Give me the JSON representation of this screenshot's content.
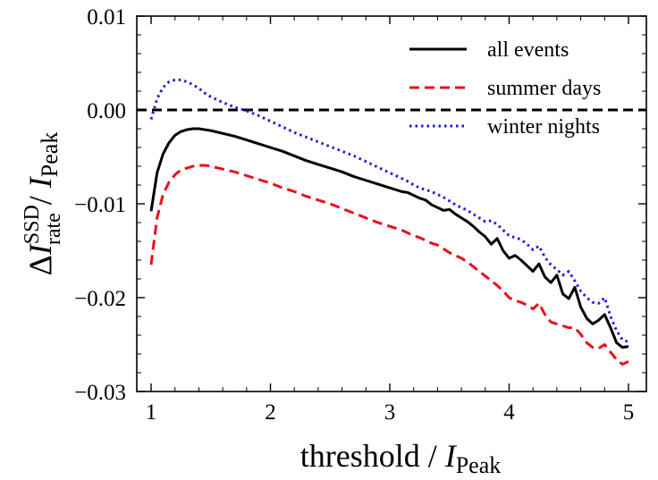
{
  "chart_data": {
    "type": "line",
    "xlabel": {
      "main": "threshold / ",
      "italic": "I",
      "sub": "Peak"
    },
    "ylabel": {
      "delta": "Δ",
      "italic": "I",
      "sup": "SSD",
      "sub": "rate",
      "mid": " / ",
      "italic2": "I",
      "sub2": "Peak"
    },
    "xlim": [
      0.88,
      5.15
    ],
    "ylim": [
      -0.03,
      0.01
    ],
    "xticks": [
      1,
      2,
      3,
      4,
      5
    ],
    "xtick_labels": [
      "1",
      "2",
      "3",
      "4",
      "5"
    ],
    "yticks": [
      0.01,
      0.0,
      -0.01,
      -0.02,
      -0.03
    ],
    "ytick_labels": [
      "0.01",
      "0.00",
      "−0.01",
      "−0.02",
      "−0.03"
    ],
    "grid": false,
    "legend_position": "top-right",
    "reference_line": {
      "y": 0.0,
      "style": "dashed",
      "color": "#000000"
    },
    "series": [
      {
        "name": "all events",
        "color": "#000000",
        "dash": "solid",
        "x": [
          1.0,
          1.05,
          1.1,
          1.15,
          1.2,
          1.25,
          1.3,
          1.35,
          1.4,
          1.45,
          1.5,
          1.6,
          1.7,
          1.8,
          1.9,
          2.0,
          2.1,
          2.2,
          2.3,
          2.4,
          2.5,
          2.6,
          2.7,
          2.8,
          2.9,
          3.0,
          3.05,
          3.1,
          3.15,
          3.2,
          3.25,
          3.3,
          3.35,
          3.4,
          3.45,
          3.5,
          3.55,
          3.6,
          3.65,
          3.7,
          3.75,
          3.8,
          3.85,
          3.9,
          3.95,
          4.0,
          4.05,
          4.1,
          4.15,
          4.2,
          4.25,
          4.3,
          4.35,
          4.4,
          4.45,
          4.5,
          4.55,
          4.6,
          4.65,
          4.7,
          4.75,
          4.8,
          4.85,
          4.9,
          4.95,
          5.0
        ],
        "values": [
          -0.0108,
          -0.0067,
          -0.0047,
          -0.0035,
          -0.0027,
          -0.0023,
          -0.0021,
          -0.002,
          -0.002,
          -0.0021,
          -0.0022,
          -0.0025,
          -0.0028,
          -0.0032,
          -0.0036,
          -0.004,
          -0.0044,
          -0.0049,
          -0.0054,
          -0.0058,
          -0.0062,
          -0.0066,
          -0.0071,
          -0.0075,
          -0.0079,
          -0.0083,
          -0.0085,
          -0.0087,
          -0.0088,
          -0.0091,
          -0.0094,
          -0.0096,
          -0.0101,
          -0.0104,
          -0.0107,
          -0.0106,
          -0.0111,
          -0.0115,
          -0.0119,
          -0.0124,
          -0.013,
          -0.0135,
          -0.0143,
          -0.0137,
          -0.015,
          -0.0158,
          -0.0155,
          -0.016,
          -0.0166,
          -0.0172,
          -0.0164,
          -0.0178,
          -0.0184,
          -0.0176,
          -0.0196,
          -0.0201,
          -0.0189,
          -0.021,
          -0.0222,
          -0.0228,
          -0.0224,
          -0.0218,
          -0.0232,
          -0.0248,
          -0.0253,
          -0.0252
        ]
      },
      {
        "name": "summer days",
        "color": "#e8101c",
        "dash": "dashed",
        "x": [
          1.0,
          1.05,
          1.1,
          1.15,
          1.2,
          1.25,
          1.3,
          1.35,
          1.4,
          1.45,
          1.5,
          1.6,
          1.7,
          1.8,
          1.9,
          2.0,
          2.1,
          2.2,
          2.3,
          2.4,
          2.5,
          2.6,
          2.7,
          2.8,
          2.9,
          3.0,
          3.05,
          3.1,
          3.15,
          3.2,
          3.25,
          3.3,
          3.35,
          3.4,
          3.45,
          3.5,
          3.55,
          3.6,
          3.65,
          3.7,
          3.75,
          3.8,
          3.85,
          3.9,
          3.95,
          4.0,
          4.05,
          4.1,
          4.15,
          4.2,
          4.25,
          4.3,
          4.35,
          4.4,
          4.45,
          4.5,
          4.55,
          4.6,
          4.65,
          4.7,
          4.75,
          4.8,
          4.85,
          4.9,
          4.95,
          5.0
        ],
        "values": [
          -0.0165,
          -0.0115,
          -0.009,
          -0.0077,
          -0.0069,
          -0.0064,
          -0.0062,
          -0.006,
          -0.0059,
          -0.0059,
          -0.006,
          -0.0063,
          -0.0066,
          -0.007,
          -0.0074,
          -0.0078,
          -0.0083,
          -0.0087,
          -0.0092,
          -0.0096,
          -0.01,
          -0.0105,
          -0.011,
          -0.0115,
          -0.012,
          -0.0124,
          -0.0126,
          -0.0128,
          -0.0131,
          -0.0134,
          -0.0136,
          -0.0139,
          -0.0142,
          -0.0144,
          -0.0148,
          -0.0152,
          -0.0155,
          -0.0158,
          -0.0162,
          -0.0167,
          -0.0172,
          -0.0177,
          -0.0182,
          -0.0187,
          -0.0193,
          -0.02,
          -0.0203,
          -0.0205,
          -0.0208,
          -0.0212,
          -0.0206,
          -0.0218,
          -0.0226,
          -0.0228,
          -0.023,
          -0.0232,
          -0.0232,
          -0.0239,
          -0.0248,
          -0.0253,
          -0.0254,
          -0.025,
          -0.0258,
          -0.0266,
          -0.0271,
          -0.0268
        ]
      },
      {
        "name": "winter nights",
        "color": "#1a1ae0",
        "dash": "dotted",
        "x": [
          1.0,
          1.05,
          1.1,
          1.15,
          1.2,
          1.25,
          1.3,
          1.35,
          1.4,
          1.45,
          1.5,
          1.6,
          1.7,
          1.8,
          1.9,
          2.0,
          2.1,
          2.2,
          2.3,
          2.4,
          2.5,
          2.6,
          2.7,
          2.8,
          2.9,
          3.0,
          3.05,
          3.1,
          3.15,
          3.2,
          3.25,
          3.3,
          3.35,
          3.4,
          3.45,
          3.5,
          3.55,
          3.6,
          3.65,
          3.7,
          3.75,
          3.8,
          3.85,
          3.9,
          3.95,
          4.0,
          4.05,
          4.1,
          4.15,
          4.2,
          4.25,
          4.3,
          4.35,
          4.4,
          4.45,
          4.5,
          4.55,
          4.6,
          4.65,
          4.7,
          4.75,
          4.8,
          4.85,
          4.9,
          4.95,
          5.0
        ],
        "values": [
          -0.001,
          0.0012,
          0.0024,
          0.003,
          0.0032,
          0.0032,
          0.003,
          0.0027,
          0.0023,
          0.0018,
          0.0014,
          0.0008,
          0.0003,
          -0.0001,
          -0.0006,
          -0.0012,
          -0.0018,
          -0.0024,
          -0.0029,
          -0.0034,
          -0.0039,
          -0.0044,
          -0.0049,
          -0.0055,
          -0.0061,
          -0.0067,
          -0.007,
          -0.0073,
          -0.0076,
          -0.008,
          -0.0083,
          -0.0085,
          -0.0087,
          -0.009,
          -0.0093,
          -0.0097,
          -0.0101,
          -0.0104,
          -0.0107,
          -0.0111,
          -0.0115,
          -0.0119,
          -0.0118,
          -0.0122,
          -0.0128,
          -0.0134,
          -0.0136,
          -0.0138,
          -0.0143,
          -0.0149,
          -0.0145,
          -0.0157,
          -0.0165,
          -0.017,
          -0.0176,
          -0.0172,
          -0.0182,
          -0.0193,
          -0.02,
          -0.0205,
          -0.0206,
          -0.02,
          -0.022,
          -0.0235,
          -0.0245,
          -0.0247
        ]
      }
    ]
  }
}
